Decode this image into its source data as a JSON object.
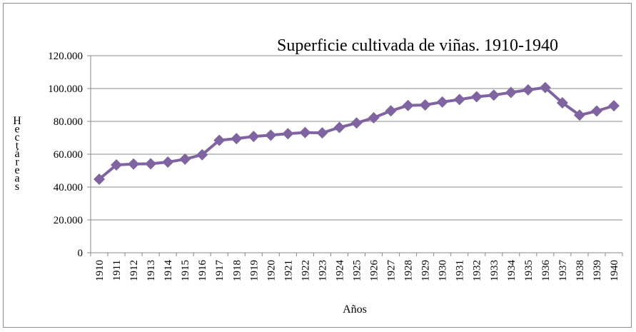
{
  "chart_data": {
    "type": "line",
    "title": "Superficie cultivada de viñas. 1910-1940",
    "xlabel": "Años",
    "ylabel": "Hectáreas",
    "ylim": [
      0,
      120000
    ],
    "y_ticks": [
      "0",
      "20.000",
      "40.000",
      "60.000",
      "80.000",
      "100.000",
      "120.000"
    ],
    "grid": true,
    "legend": "none",
    "series_color": "#8064a2",
    "categories": [
      "1910",
      "1911",
      "1912",
      "1913",
      "1914",
      "1915",
      "1916",
      "1917",
      "1918",
      "1919",
      "1920",
      "1921",
      "1922",
      "1923",
      "1924",
      "1925",
      "1926",
      "1927",
      "1928",
      "1929",
      "1930",
      "1931",
      "1932",
      "1933",
      "1934",
      "1935",
      "1936",
      "1937",
      "1938",
      "1939",
      "1940"
    ],
    "series": [
      {
        "values": [
          44800,
          53500,
          54000,
          54200,
          55200,
          57000,
          59700,
          68500,
          69500,
          70800,
          71600,
          72500,
          73200,
          73000,
          76300,
          79000,
          82200,
          86400,
          89700,
          90000,
          91800,
          93300,
          95000,
          96000,
          97600,
          99200,
          100600,
          91300,
          83800,
          86300,
          89500
        ]
      }
    ]
  }
}
